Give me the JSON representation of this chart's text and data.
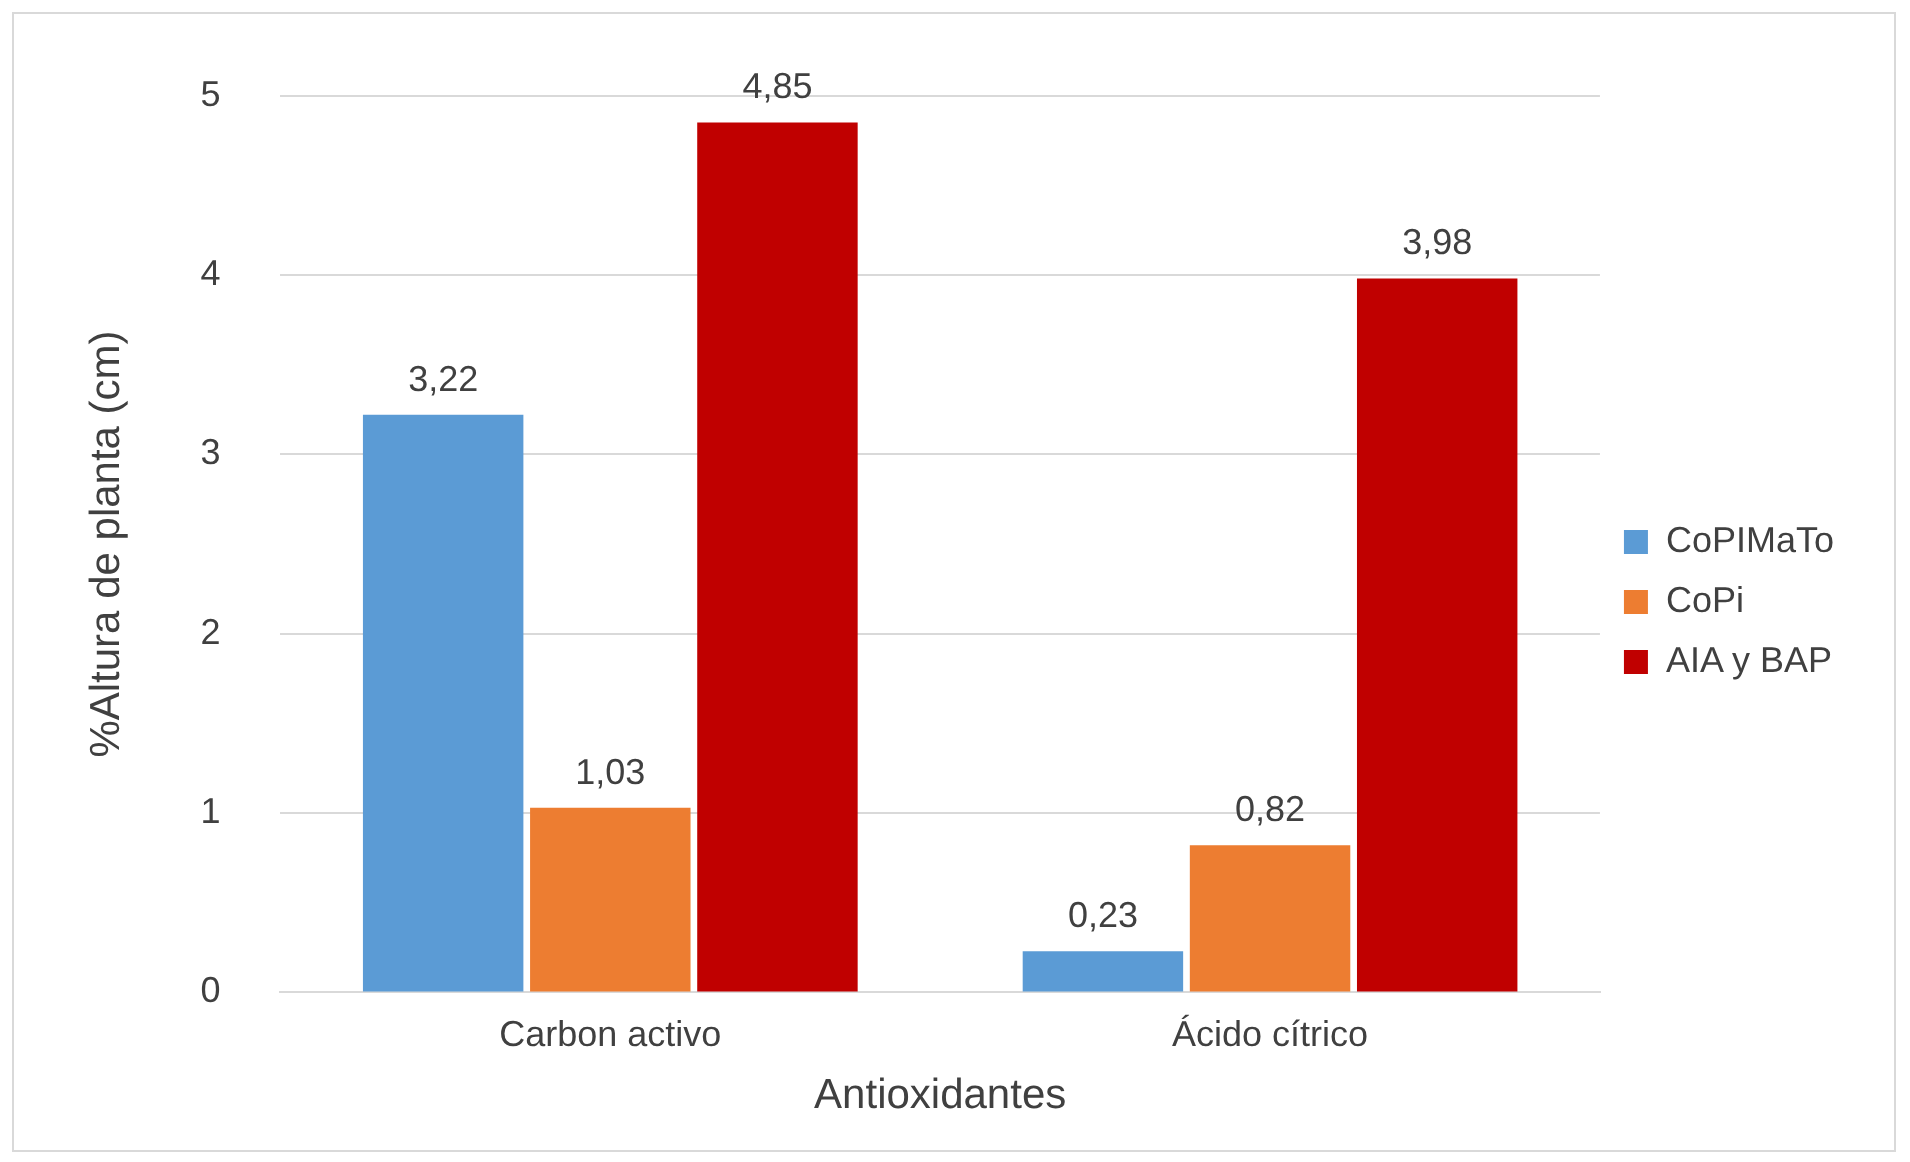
{
  "chart_data": {
    "type": "bar",
    "xlabel": "Antioxidantes",
    "ylabel": "%Altura de planta (cm)",
    "categories": [
      "Carbon activo",
      "Ácido cítrico"
    ],
    "series": [
      {
        "name": "CoPIMaTo",
        "color": "#5b9bd5",
        "values": [
          3.22,
          0.23
        ],
        "value_labels": [
          "3,22",
          "0,23"
        ]
      },
      {
        "name": "CoPi",
        "color": "#ed7d31",
        "values": [
          1.03,
          0.82
        ],
        "value_labels": [
          "1,03",
          "0,82"
        ]
      },
      {
        "name": "AIA y BAP",
        "color": "#c00000",
        "values": [
          4.85,
          3.98
        ],
        "value_labels": [
          "4,85",
          "3,98"
        ]
      }
    ],
    "ylim": [
      0,
      5
    ],
    "yticks": [
      0,
      1,
      2,
      3,
      4,
      5
    ],
    "grid": "y",
    "legend": "right"
  }
}
